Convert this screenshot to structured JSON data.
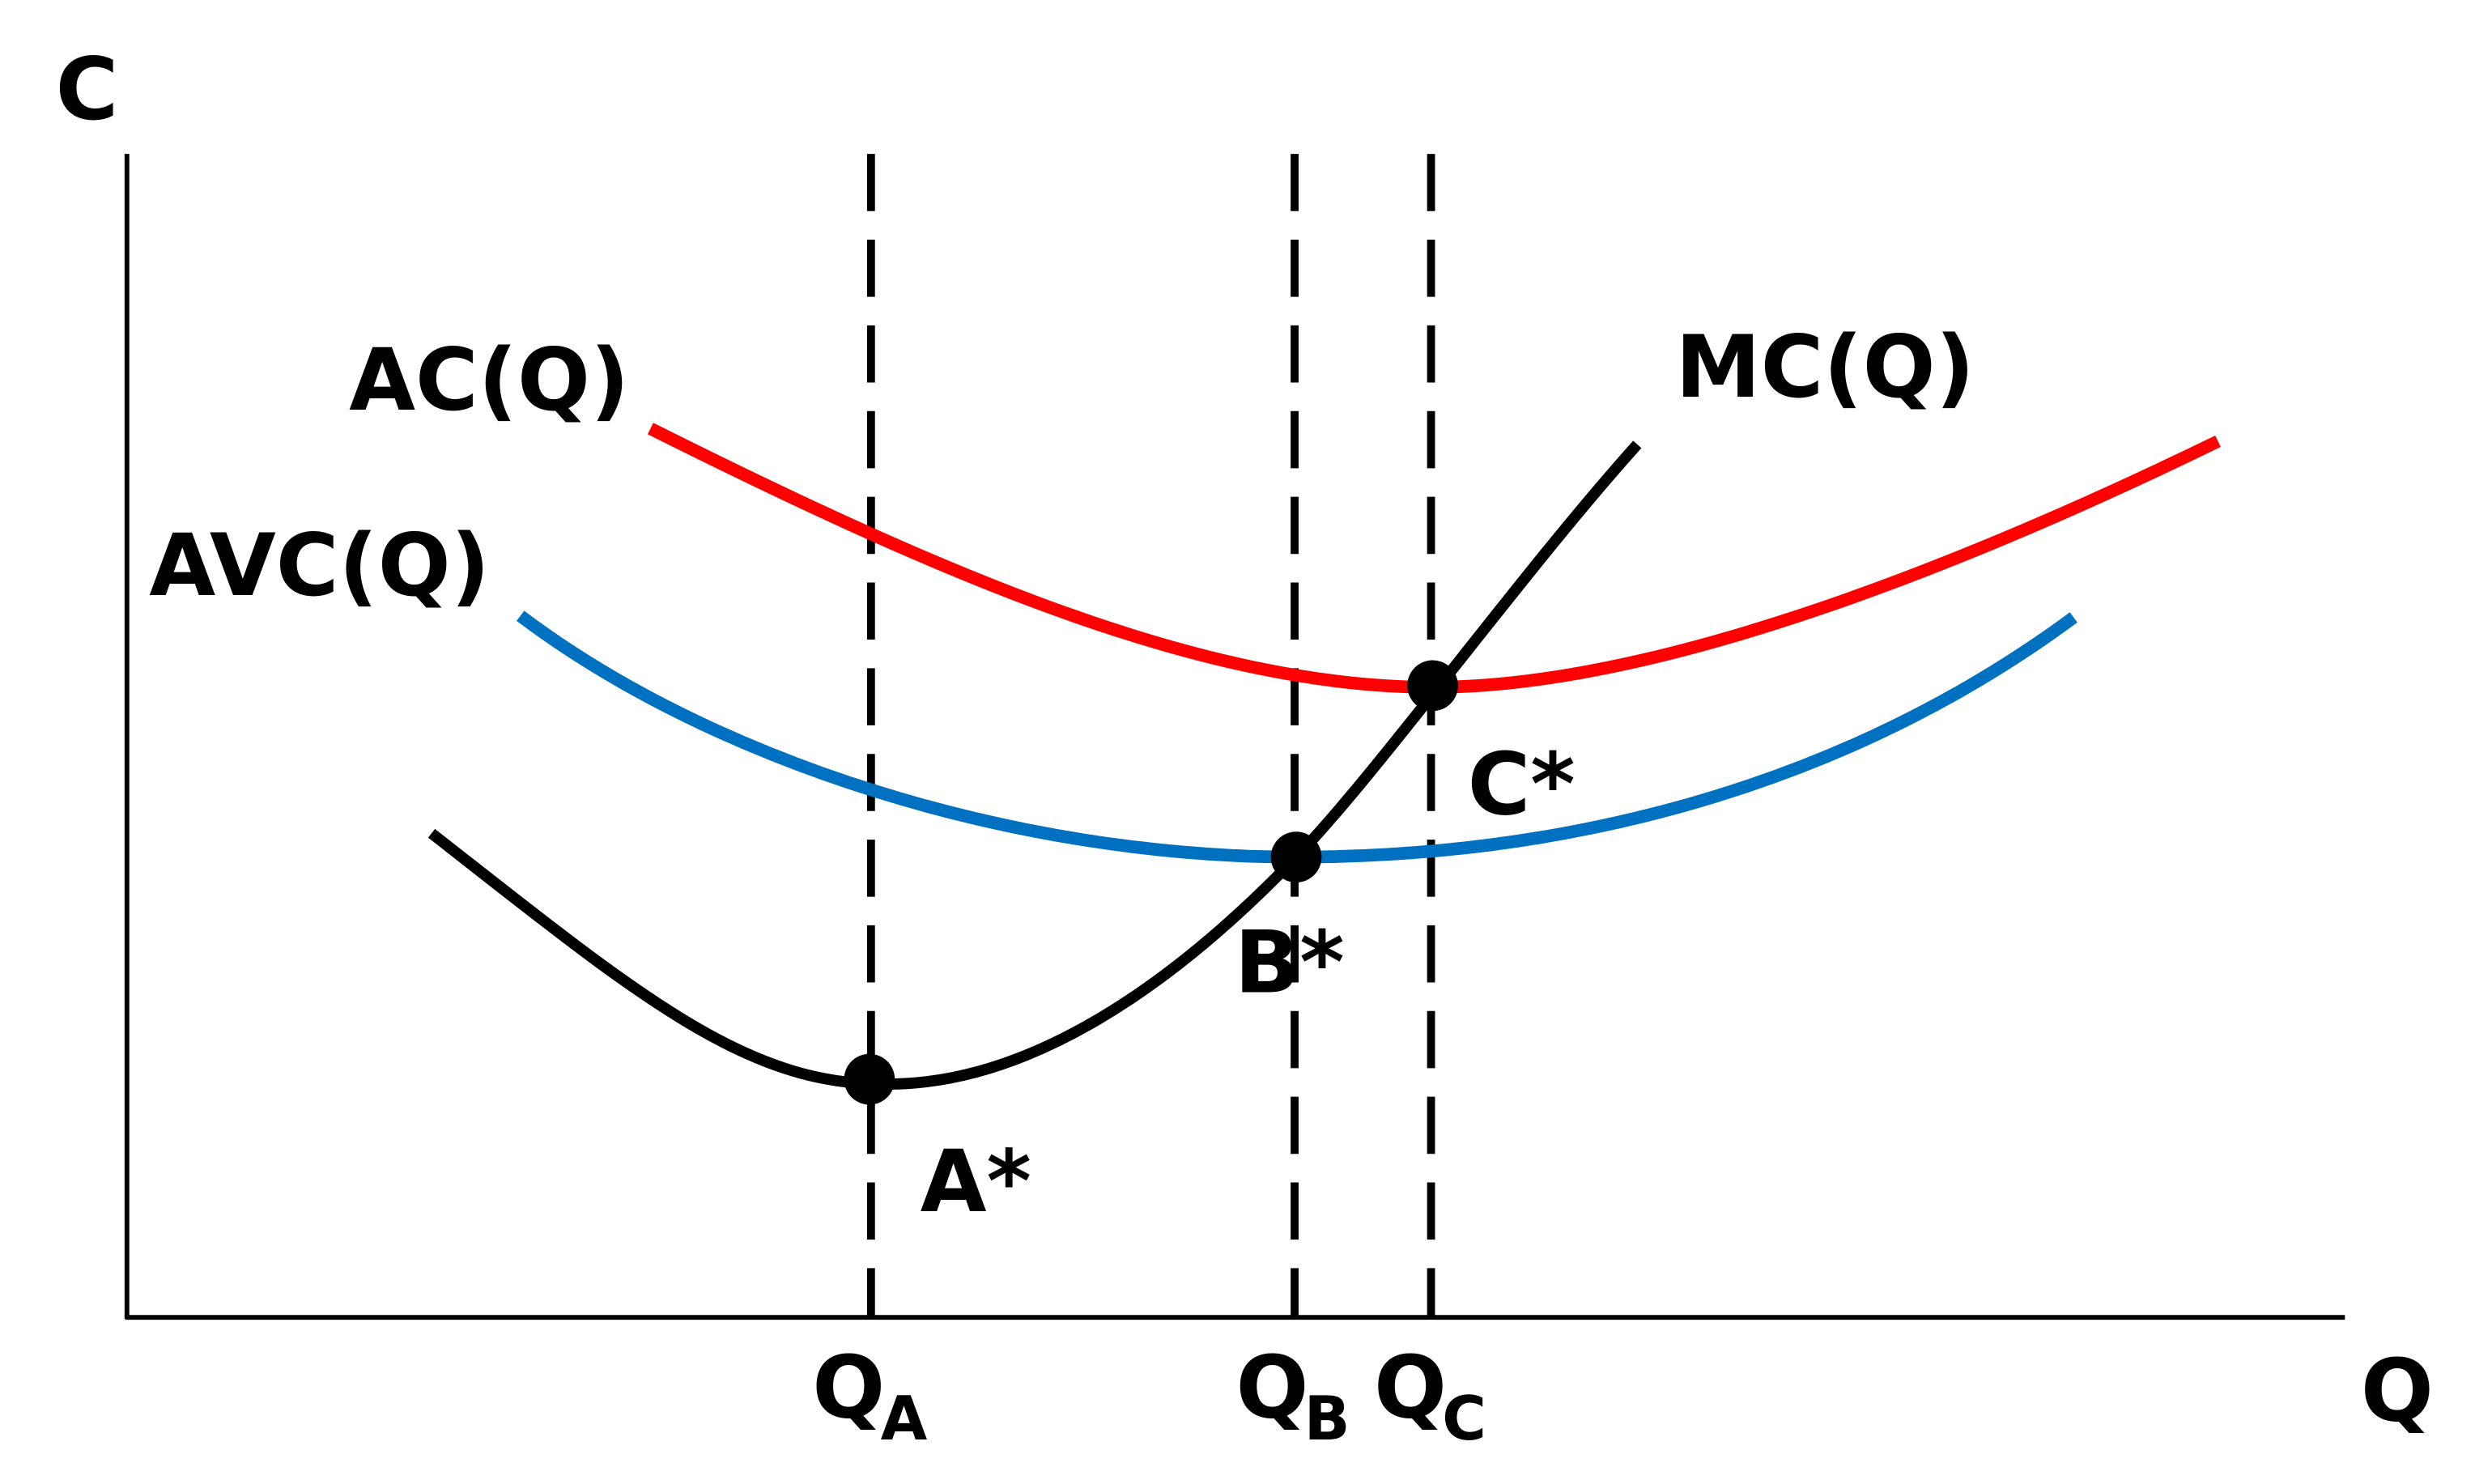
{
  "axes": {
    "y_label": "C",
    "x_label": "Q"
  },
  "curves": {
    "ac": "AC(Q)",
    "avc": "AVC(Q)",
    "mc": "MC(Q)"
  },
  "points": {
    "a": "A*",
    "b": "B*",
    "c": "C*"
  },
  "quantities": [
    {
      "main": "Q",
      "sub": "A"
    },
    {
      "main": "Q",
      "sub": "B"
    },
    {
      "main": "Q",
      "sub": "C"
    }
  ]
}
